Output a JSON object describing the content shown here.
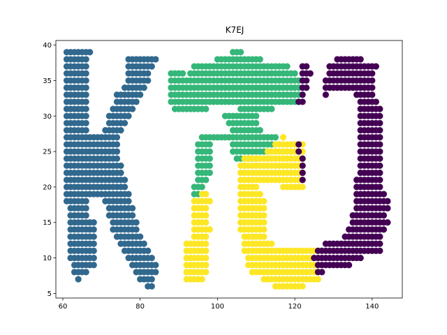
{
  "chart_data": {
    "type": "scatter",
    "title": "K7EJ",
    "xlabel": "",
    "ylabel": "",
    "xlim": [
      58.2,
      147.8
    ],
    "ylim": [
      4.35,
      40.65
    ],
    "xticks": [
      60,
      80,
      100,
      120,
      140
    ],
    "yticks": [
      5,
      10,
      15,
      20,
      25,
      30,
      35,
      40
    ],
    "grid": false,
    "legend": "none",
    "marker_size_note": "circle markers",
    "series": [
      {
        "color": "#31688e",
        "runs": [
          [
            39,
            61,
            67
          ],
          [
            38,
            61,
            66
          ],
          [
            38,
            77,
            84
          ],
          [
            37,
            61,
            66
          ],
          [
            37,
            77,
            83
          ],
          [
            36,
            61,
            66
          ],
          [
            36,
            77,
            82
          ],
          [
            35,
            61,
            66
          ],
          [
            35,
            77,
            82
          ],
          [
            34,
            61,
            66
          ],
          [
            34,
            76,
            81
          ],
          [
            33,
            61,
            66
          ],
          [
            33,
            74,
            80
          ],
          [
            32,
            61,
            66
          ],
          [
            32,
            74,
            79
          ],
          [
            31,
            61,
            66
          ],
          [
            31,
            73,
            78
          ],
          [
            30,
            61,
            66
          ],
          [
            30,
            72,
            77
          ],
          [
            29,
            61,
            66
          ],
          [
            29,
            72,
            76
          ],
          [
            28,
            61,
            66
          ],
          [
            28,
            71,
            75
          ],
          [
            27,
            61,
            74
          ],
          [
            26,
            61,
            74
          ],
          [
            25,
            61,
            74
          ],
          [
            24,
            61,
            74
          ],
          [
            23,
            61,
            75
          ],
          [
            22,
            61,
            75
          ],
          [
            21,
            61,
            76
          ],
          [
            20,
            61,
            76
          ],
          [
            19,
            61,
            77
          ],
          [
            18,
            61,
            66
          ],
          [
            18,
            71,
            77
          ],
          [
            17,
            62,
            66
          ],
          [
            17,
            72,
            78
          ],
          [
            16,
            62,
            66
          ],
          [
            16,
            72,
            78
          ],
          [
            15,
            62,
            68
          ],
          [
            15,
            73,
            79
          ],
          [
            14,
            62,
            68
          ],
          [
            14,
            73,
            79
          ],
          [
            13,
            62,
            68
          ],
          [
            13,
            74,
            80
          ],
          [
            12,
            62,
            68
          ],
          [
            12,
            75,
            81
          ],
          [
            11,
            62,
            68
          ],
          [
            11,
            76,
            82
          ],
          [
            10,
            62,
            68
          ],
          [
            10,
            77,
            83
          ],
          [
            9,
            63,
            68
          ],
          [
            9,
            78,
            84
          ],
          [
            8,
            63,
            66
          ],
          [
            8,
            79,
            84
          ],
          [
            7,
            64,
            64
          ],
          [
            7,
            80,
            83
          ],
          [
            6,
            82,
            83
          ]
        ]
      },
      {
        "color": "#35b779",
        "runs": [
          [
            39,
            104,
            106
          ],
          [
            38,
            100,
            111
          ],
          [
            37,
            94,
            118
          ],
          [
            36,
            88,
            91
          ],
          [
            36,
            93,
            120
          ],
          [
            35,
            88,
            121
          ],
          [
            34,
            88,
            121
          ],
          [
            33,
            88,
            121
          ],
          [
            32,
            88,
            121
          ],
          [
            31,
            89,
            97
          ],
          [
            31,
            106,
            114
          ],
          [
            30,
            102,
            110
          ],
          [
            29,
            103,
            110
          ],
          [
            28,
            104,
            111
          ],
          [
            27,
            96,
            115
          ],
          [
            26,
            95,
            98
          ],
          [
            26,
            104,
            115
          ],
          [
            25,
            95,
            98
          ],
          [
            25,
            104,
            113
          ],
          [
            24,
            95,
            98
          ],
          [
            24,
            105,
            110
          ],
          [
            23,
            95,
            98
          ],
          [
            23,
            107,
            107
          ],
          [
            22,
            95,
            98
          ],
          [
            21,
            95,
            97
          ],
          [
            20,
            94,
            96
          ],
          [
            19,
            94,
            95
          ]
        ]
      },
      {
        "color": "#fde725",
        "runs": [
          [
            27,
            117,
            117
          ],
          [
            26,
            115,
            122
          ],
          [
            25,
            113,
            122
          ],
          [
            24,
            107,
            122
          ],
          [
            23,
            106,
            122
          ],
          [
            22,
            106,
            122
          ],
          [
            21,
            106,
            122
          ],
          [
            20,
            106,
            110
          ],
          [
            20,
            117,
            122
          ],
          [
            19,
            96,
            97
          ],
          [
            19,
            106,
            111
          ],
          [
            18,
            94,
            98
          ],
          [
            18,
            106,
            112
          ],
          [
            17,
            94,
            97
          ],
          [
            17,
            106,
            112
          ],
          [
            16,
            94,
            97
          ],
          [
            16,
            106,
            112
          ],
          [
            15,
            94,
            97
          ],
          [
            15,
            106,
            112
          ],
          [
            14,
            94,
            98
          ],
          [
            14,
            106,
            112
          ],
          [
            13,
            94,
            97
          ],
          [
            13,
            107,
            112
          ],
          [
            12,
            92,
            97
          ],
          [
            12,
            107,
            114
          ],
          [
            11,
            92,
            97
          ],
          [
            11,
            107,
            125
          ],
          [
            10,
            92,
            97
          ],
          [
            10,
            108,
            126
          ],
          [
            9,
            92,
            97
          ],
          [
            9,
            108,
            126
          ],
          [
            8,
            92,
            97
          ],
          [
            8,
            109,
            126
          ],
          [
            7,
            92,
            96
          ],
          [
            7,
            112,
            126
          ],
          [
            6,
            115,
            122
          ]
        ]
      },
      {
        "color": "#440154",
        "runs": [
          [
            38,
            131,
            137
          ],
          [
            37,
            122,
            123
          ],
          [
            37,
            129,
            141
          ],
          [
            36,
            122,
            124
          ],
          [
            36,
            129,
            140
          ],
          [
            35,
            122,
            123
          ],
          [
            35,
            128,
            140
          ],
          [
            34,
            122,
            123
          ],
          [
            34,
            128,
            140
          ],
          [
            33,
            122,
            122
          ],
          [
            33,
            128,
            128
          ],
          [
            33,
            136,
            140
          ],
          [
            32,
            121,
            122
          ],
          [
            32,
            137,
            141
          ],
          [
            31,
            137,
            142
          ],
          [
            30,
            137,
            142
          ],
          [
            29,
            137,
            142
          ],
          [
            28,
            137,
            142
          ],
          [
            27,
            137,
            142
          ],
          [
            26,
            121,
            121
          ],
          [
            26,
            137,
            142
          ],
          [
            25,
            121,
            121
          ],
          [
            25,
            137,
            142
          ],
          [
            24,
            122,
            122
          ],
          [
            24,
            137,
            142
          ],
          [
            23,
            122,
            122
          ],
          [
            23,
            137,
            142
          ],
          [
            22,
            122,
            122
          ],
          [
            22,
            137,
            142
          ],
          [
            21,
            122,
            122
          ],
          [
            21,
            136,
            142
          ],
          [
            20,
            136,
            142
          ],
          [
            19,
            136,
            143
          ],
          [
            18,
            136,
            144
          ],
          [
            17,
            136,
            144
          ],
          [
            16,
            135,
            143
          ],
          [
            15,
            135,
            144
          ],
          [
            14,
            134,
            143
          ],
          [
            13,
            133,
            142
          ],
          [
            12,
            128,
            142
          ],
          [
            11,
            126,
            142
          ],
          [
            10,
            125,
            137
          ],
          [
            9,
            126,
            134
          ],
          [
            8,
            126,
            127
          ]
        ]
      }
    ]
  }
}
